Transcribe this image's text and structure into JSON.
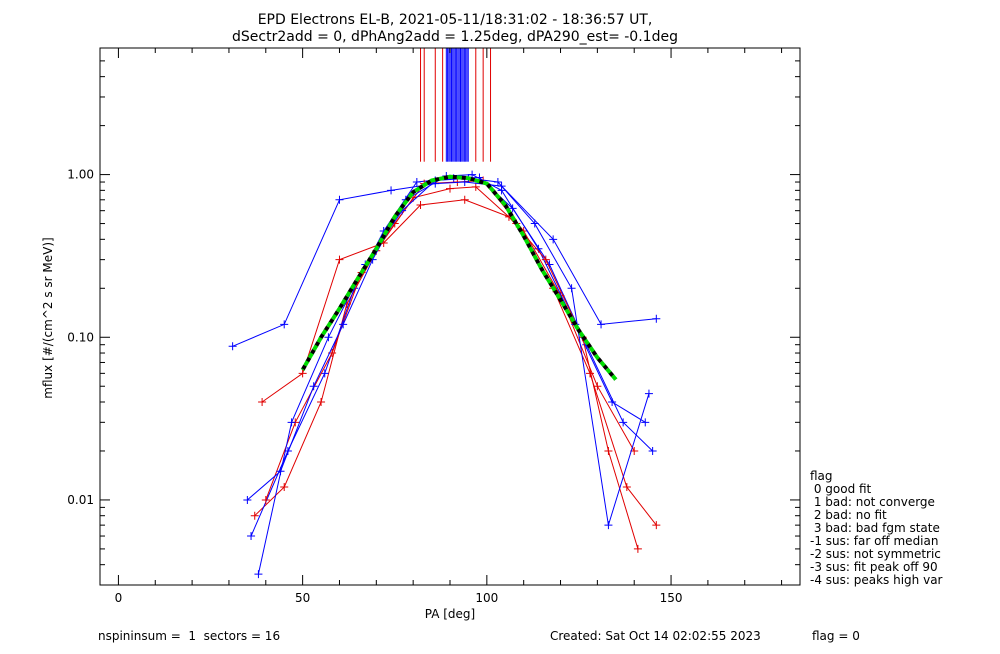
{
  "header": {
    "title_line1": "EPD Electrons EL-B, 2021-05-11/18:31:02 - 18:36:57 UT,",
    "title_line2": "dSectr2add = 0, dPhAng2add = 1.25deg, dPA290_est=  -0.1deg"
  },
  "footer": {
    "left": "nspininsum =  1  sectors = 16",
    "created": "Created: Sat Oct 14 02:02:55 2023",
    "flag": "flag = 0"
  },
  "legend": {
    "title": "flag",
    "items": [
      " 0 good fit",
      " 1 bad: not converge",
      " 2 bad: no fit",
      " 3 bad: bad fgm state",
      "-1 sus: far off median",
      "-2 sus: not symmetric",
      "-3 sus: fit peak off 90",
      "-4 sus: peaks high var"
    ]
  },
  "chart_data": {
    "type": "line",
    "xlabel": "PA [deg]",
    "ylabel": "mflux [#/(cm^2 s sr MeV)]",
    "xlim": [
      -5,
      185
    ],
    "ylim": [
      0.003,
      6.0
    ],
    "yscale": "log",
    "x_ticks": [
      0,
      50,
      100,
      150
    ],
    "x_tick_labels": [
      "0",
      "50",
      "100",
      "150"
    ],
    "y_ticks": [
      0.01,
      0.1,
      1.0
    ],
    "y_tick_labels": [
      "0.01",
      "0.10",
      "1.00"
    ],
    "grid": false,
    "series_colors": {
      "red": "#e00000",
      "blue": "#0000ff",
      "fit_green": "#00dd00",
      "fit_black": "#000000"
    },
    "fit_curve": {
      "x": [
        50,
        55,
        60,
        65,
        70,
        75,
        80,
        85,
        90,
        95,
        100,
        105,
        110,
        115,
        120,
        125,
        130,
        135
      ],
      "y": [
        0.063,
        0.1,
        0.15,
        0.23,
        0.35,
        0.55,
        0.78,
        0.92,
        0.97,
        0.95,
        0.88,
        0.65,
        0.42,
        0.26,
        0.17,
        0.11,
        0.075,
        0.055
      ]
    },
    "sample_series": [
      {
        "color": "red",
        "x": [
          37,
          45,
          55,
          62,
          70,
          80,
          90,
          97,
          108,
          118,
          128,
          138,
          146
        ],
        "y": [
          0.008,
          0.012,
          0.04,
          0.16,
          0.34,
          0.72,
          0.82,
          0.84,
          0.5,
          0.2,
          0.06,
          0.012,
          0.007
        ]
      },
      {
        "color": "blue",
        "x": [
          36,
          46,
          56,
          64,
          72,
          81,
          91,
          98,
          107,
          117,
          127,
          137,
          145
        ],
        "y": [
          0.006,
          0.02,
          0.06,
          0.2,
          0.45,
          0.9,
          0.95,
          0.96,
          0.62,
          0.28,
          0.09,
          0.03,
          0.02
        ]
      },
      {
        "color": "red",
        "x": [
          40,
          48,
          58,
          66,
          75,
          83,
          92,
          99,
          110,
          120,
          130,
          140
        ],
        "y": [
          0.01,
          0.03,
          0.08,
          0.25,
          0.5,
          0.88,
          0.9,
          0.92,
          0.45,
          0.18,
          0.05,
          0.02
        ]
      },
      {
        "color": "blue",
        "x": [
          35,
          44,
          53,
          61,
          69,
          78,
          89,
          96,
          104,
          114,
          124,
          134,
          143
        ],
        "y": [
          0.01,
          0.015,
          0.05,
          0.12,
          0.3,
          0.7,
          0.98,
          1.0,
          0.8,
          0.35,
          0.12,
          0.04,
          0.03
        ]
      },
      {
        "color": "blue",
        "x": [
          31,
          45,
          60,
          74,
          86,
          94,
          104,
          118,
          131,
          146
        ],
        "y": [
          0.088,
          0.12,
          0.7,
          0.8,
          0.88,
          0.9,
          0.85,
          0.4,
          0.12,
          0.13
        ]
      },
      {
        "color": "red",
        "x": [
          39,
          50,
          60,
          72,
          82,
          94,
          106,
          116,
          126,
          133,
          141
        ],
        "y": [
          0.04,
          0.06,
          0.3,
          0.38,
          0.65,
          0.7,
          0.55,
          0.3,
          0.1,
          0.02,
          0.005
        ]
      },
      {
        "color": "blue",
        "x": [
          38,
          47,
          57,
          67,
          77,
          86,
          95,
          103,
          113,
          123,
          133,
          144
        ],
        "y": [
          0.0035,
          0.03,
          0.1,
          0.28,
          0.6,
          0.92,
          0.95,
          0.9,
          0.5,
          0.2,
          0.007,
          0.045
        ]
      }
    ],
    "spike_lines": {
      "x_min": 82,
      "x_max": 101,
      "y_top": 6.0,
      "y_bottom": 1.2,
      "red_x": [
        82,
        83,
        86,
        88,
        97,
        99,
        101
      ],
      "blue_x_range": [
        89,
        95
      ]
    }
  }
}
